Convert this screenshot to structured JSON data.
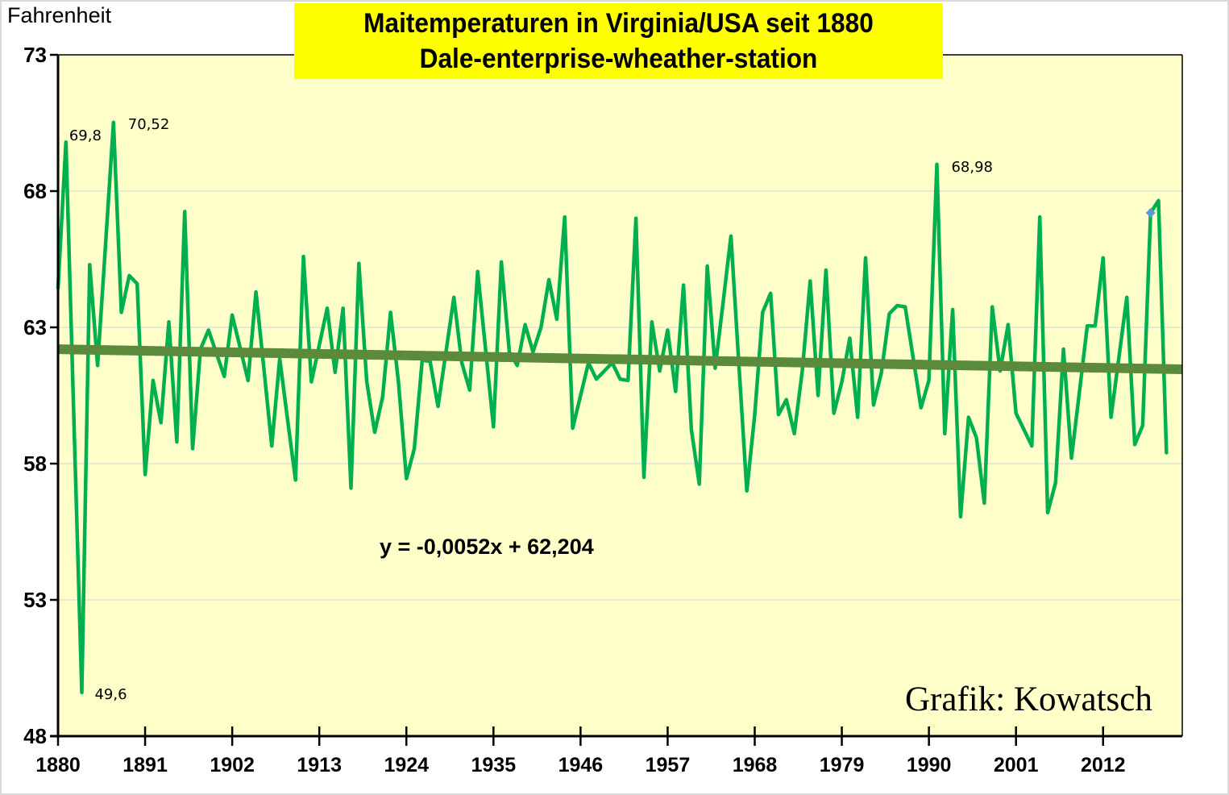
{
  "chart_data": {
    "type": "line",
    "title": "Maitemperaturen in Virginia/USA seit 1880",
    "subtitle": "Dale-enterprise-wheather-station",
    "ylabel": "Fahrenheit",
    "xlabel": "",
    "ylim": [
      48,
      73
    ],
    "yticks": [
      73,
      68,
      63,
      58,
      53,
      48
    ],
    "xlim": [
      1880,
      2022
    ],
    "xticks": [
      1880,
      1891,
      1902,
      1913,
      1924,
      1935,
      1946,
      1957,
      1968,
      1979,
      1990,
      2001,
      2012
    ],
    "grid": "horizontal",
    "legend": "none",
    "background_color": "#ffffc9",
    "title_background": "#ffff00",
    "series": [
      {
        "name": "Maitemperatur",
        "color": "#00b050",
        "x_start": 1880,
        "values": [
          64.45,
          69.8,
          59.7,
          49.6,
          65.3,
          61.6,
          66.0,
          70.52,
          63.55,
          64.9,
          64.6,
          57.6,
          61.05,
          59.5,
          63.2,
          58.8,
          67.25,
          58.55,
          62.2,
          62.9,
          62.05,
          61.2,
          63.45,
          62.25,
          61.05,
          64.3,
          61.5,
          58.65,
          61.85,
          59.6,
          57.4,
          65.6,
          61.0,
          62.35,
          63.7,
          61.35,
          63.7,
          57.1,
          65.35,
          61.0,
          59.15,
          60.45,
          63.55,
          61.0,
          57.45,
          58.55,
          61.8,
          61.75,
          60.1,
          62.1,
          64.1,
          61.7,
          60.7,
          65.05,
          62.2,
          59.35,
          65.4,
          62.1,
          61.6,
          63.1,
          62.1,
          63.0,
          64.75,
          63.3,
          67.05,
          59.3,
          60.5,
          61.7,
          61.1,
          61.4,
          61.7,
          61.1,
          61.05,
          67.0,
          57.5,
          63.2,
          61.4,
          62.9,
          60.65,
          64.55,
          59.25,
          57.25,
          65.25,
          61.5,
          63.9,
          66.35,
          61.6,
          57.0,
          59.8,
          63.55,
          64.25,
          59.8,
          60.35,
          59.1,
          61.4,
          64.7,
          60.5,
          65.1,
          59.85,
          61.0,
          62.6,
          59.7,
          65.55,
          60.15,
          61.35,
          63.5,
          63.8,
          63.75,
          61.9,
          60.05,
          61.05,
          68.98,
          59.1,
          63.65,
          56.05,
          59.7,
          58.95,
          56.55,
          63.75,
          61.4,
          63.1,
          59.85,
          59.25,
          58.65,
          67.05,
          56.2,
          57.3,
          62.2,
          58.2,
          60.6,
          63.05,
          63.05,
          65.55,
          59.7,
          61.9,
          64.1,
          58.7,
          59.4,
          67.2,
          67.65,
          58.4
        ]
      }
    ],
    "trendline": {
      "color": "#5b8a3c",
      "slope_per_index": -0.0052,
      "intercept": 62.204,
      "equation_label": "y = -0,0052x + 62,204"
    },
    "highlight_marker": {
      "year": 2018,
      "value": 67.2,
      "color": "#5b9bd5",
      "shape": "diamond"
    },
    "annotations": [
      {
        "year": 1881,
        "value": 69.8,
        "text": "69,8"
      },
      {
        "year": 1887,
        "value": 70.52,
        "text": "70,52"
      },
      {
        "year": 1883,
        "value": 49.6,
        "text": "49,6"
      },
      {
        "year": 1991,
        "value": 68.98,
        "text": "68,98"
      }
    ],
    "credit": "Grafik: Kowatsch"
  }
}
